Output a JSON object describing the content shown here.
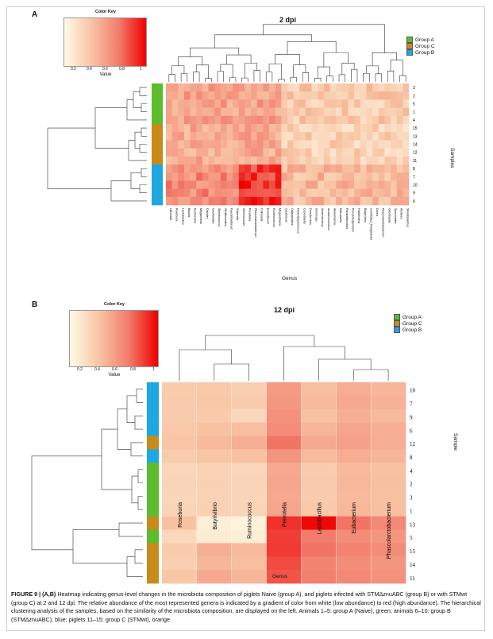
{
  "panelA": {
    "letter": "A",
    "title": "2 dpi",
    "color_key": {
      "title": "Color Key",
      "value_label": "Value",
      "ticks": [
        "0.2",
        "0.4",
        "0.6",
        "0.8",
        "1"
      ]
    },
    "legend": [
      {
        "label": "Group A",
        "color": "#5cbd2c"
      },
      {
        "label": "Group C",
        "color": "#c98a1c"
      },
      {
        "label": "Group B",
        "color": "#1ea7e1"
      }
    ],
    "samples": [
      "3",
      "2",
      "5",
      "1",
      "4",
      "15",
      "13",
      "14",
      "12",
      "11",
      "8",
      "7",
      "10",
      "9",
      "6"
    ],
    "sample_groups": [
      "A",
      "A",
      "A",
      "A",
      "A",
      "C",
      "C",
      "C",
      "C",
      "C",
      "B",
      "B",
      "B",
      "B",
      "B"
    ],
    "genera": [
      "Ultronella",
      "Roseburia",
      "Lactobacillus",
      "Blautia",
      "Escherichia",
      "Megamonas",
      "Dialister",
      "Oscillibacter",
      "Streptococcus",
      "Shuttleworthia",
      "Faecalibacterium",
      "Sutterella",
      "Selenomonas",
      "Prevotella",
      "Phascolarctobacterium",
      "Collinsella",
      "Eubacterium",
      "Ruminococcus",
      "Megasphaera",
      "Clostridium",
      "Oligosphaera",
      "Peptostreptococcus",
      "Coprobacter",
      "Desulfovibrio",
      "Gemmiger",
      "Anaerotruncus",
      "Acidaminococcus",
      "Akkermansia",
      "Mitsuokella",
      "Parabacteroides",
      "Pseudobutyrivibrio",
      "Holdemania",
      "Butyrivibrio",
      "Candidatus_Pelagibacter",
      "Dorea",
      "Phascolarctobacterium",
      "Odoribacter",
      "Sporobacter",
      "Alistipes",
      "Streptobacillus"
    ],
    "y_axis_label": "Samples",
    "x_axis_label": "Genus"
  },
  "panelB": {
    "letter": "B",
    "title": "12 dpi",
    "color_key": {
      "title": "Color Key",
      "value_label": "Value",
      "ticks": [
        "0.2",
        "0.4",
        "0.6",
        "0.8",
        "1"
      ]
    },
    "legend": [
      {
        "label": "Group A",
        "color": "#5cbd2c"
      },
      {
        "label": "Group C",
        "color": "#c98a1c"
      },
      {
        "label": "Group B",
        "color": "#1ea7e1"
      }
    ],
    "samples": [
      "10",
      "7",
      "9",
      "6",
      "12",
      "8",
      "4",
      "2",
      "3",
      "1",
      "13",
      "5",
      "15",
      "14",
      "11"
    ],
    "sample_groups": [
      "B",
      "B",
      "B",
      "B",
      "C",
      "B",
      "A",
      "A",
      "A",
      "A",
      "C",
      "A",
      "C",
      "C",
      "C"
    ],
    "genera": [
      "Roseburia",
      "Butyrivibrio",
      "Ruminococcus",
      "Prevotella",
      "Lactobacillus",
      "Eubacterium",
      "Phascolarctobacterium"
    ],
    "values": [
      [
        0.3,
        0.32,
        0.28,
        0.55,
        0.38,
        0.46,
        0.42
      ],
      [
        0.31,
        0.33,
        0.3,
        0.57,
        0.4,
        0.48,
        0.44
      ],
      [
        0.3,
        0.31,
        0.22,
        0.6,
        0.36,
        0.45,
        0.4
      ],
      [
        0.32,
        0.36,
        0.38,
        0.62,
        0.42,
        0.5,
        0.45
      ],
      [
        0.34,
        0.4,
        0.45,
        0.72,
        0.48,
        0.52,
        0.46
      ],
      [
        0.3,
        0.34,
        0.36,
        0.58,
        0.4,
        0.46,
        0.42
      ],
      [
        0.24,
        0.26,
        0.24,
        0.48,
        0.3,
        0.4,
        0.36
      ],
      [
        0.25,
        0.27,
        0.25,
        0.5,
        0.31,
        0.41,
        0.37
      ],
      [
        0.24,
        0.26,
        0.24,
        0.49,
        0.3,
        0.4,
        0.36
      ],
      [
        0.25,
        0.27,
        0.25,
        0.5,
        0.32,
        0.41,
        0.37
      ],
      [
        0.36,
        0.08,
        0.06,
        0.88,
        0.98,
        0.72,
        0.64
      ],
      [
        0.22,
        0.1,
        0.08,
        0.85,
        0.7,
        0.62,
        0.58
      ],
      [
        0.3,
        0.45,
        0.4,
        0.86,
        0.72,
        0.66,
        0.62
      ],
      [
        0.28,
        0.42,
        0.38,
        0.82,
        0.66,
        0.62,
        0.58
      ],
      [
        0.33,
        0.48,
        0.42,
        0.8,
        0.68,
        0.64,
        0.6
      ]
    ],
    "y_axis_label": "Sample",
    "x_axis_label": "Genus"
  },
  "caption": {
    "label": "FIGURE 9 | (A,B)",
    "text": "Heatmap indicating genus-level changes in the microbiota composition of piglets Naive (group A), and piglets infected with STMΔznuABC (group B) or with STMwt (group C) at 2 and 12 dpi. The relative abundance of the most represented genera is indicated by a gradient of color from white (low abundance) to red (high abundance). The hierarchical clustering analysis of the samples, based on the similarity of the microbiota composition, are displayed on the left. Animals 1–5: group A (Naive), green; animals 6–10: group B (STMΔznuABC), blue; piglets 11–15: group C (STMwt), orange."
  }
}
